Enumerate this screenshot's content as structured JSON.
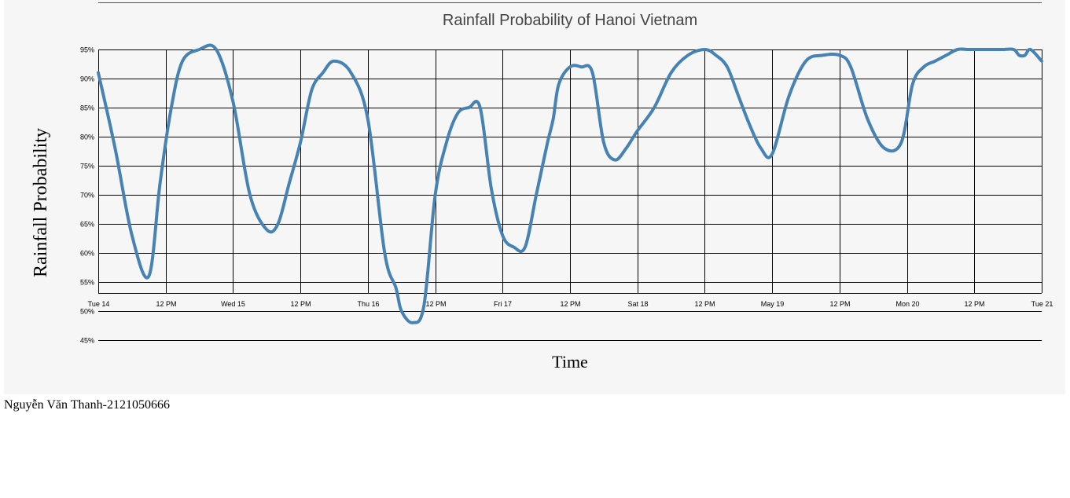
{
  "chart_data": {
    "type": "line",
    "title": "Rainfall Probability of Hanoi Vietnam",
    "xlabel": "Time",
    "ylabel": "Rainfall Probability",
    "x_tick_labels": [
      "Tue 14",
      "12 PM",
      "Wed 15",
      "12 PM",
      "Thu 16",
      "12 PM",
      "Fri 17",
      "12 PM",
      "Sat 18",
      "12 PM",
      "May 19",
      "12 PM",
      "Mon 20",
      "12 PM",
      "Tue 21"
    ],
    "y_tick_labels": [
      "95%",
      "90%",
      "85%",
      "80%",
      "75%",
      "70%",
      "65%",
      "60%",
      "55%",
      "50%",
      "45%"
    ],
    "y_ticks": [
      95,
      90,
      85,
      80,
      75,
      70,
      65,
      60,
      55,
      50,
      45
    ],
    "x_range_hours": [
      0,
      168
    ],
    "grid": true,
    "line_color": "#4682b4",
    "series": [
      {
        "hours": [
          0,
          3,
          6,
          9,
          11,
          13,
          15,
          18,
          21,
          24,
          27,
          30,
          32,
          34,
          36,
          38,
          40,
          42,
          45,
          48,
          51,
          53,
          54,
          56,
          58,
          60,
          62,
          64,
          66,
          68,
          70,
          72,
          74,
          76,
          78,
          80,
          81,
          82,
          84,
          86,
          88,
          90,
          92,
          94,
          96,
          99,
          102,
          105,
          108,
          110,
          112,
          114,
          116,
          118,
          120,
          123,
          126,
          129,
          132,
          134,
          137,
          140,
          143,
          145,
          147,
          149,
          151,
          153,
          155,
          157,
          159,
          161,
          163,
          164,
          165,
          166,
          168
        ],
        "values": [
          91,
          78,
          63,
          56,
          72,
          85,
          93,
          95,
          95,
          86,
          70,
          64,
          65,
          72,
          79,
          88,
          91,
          93,
          91,
          83,
          60,
          54,
          50,
          48,
          51,
          70,
          79,
          84,
          85,
          85,
          71,
          63,
          61,
          61,
          70,
          79,
          83,
          89,
          92,
          92,
          91,
          79,
          76,
          78,
          81,
          85,
          91,
          94,
          95,
          94,
          92,
          87,
          82,
          78,
          77,
          87,
          93,
          94,
          94,
          92,
          83,
          78,
          79,
          89,
          92,
          93,
          94,
          95,
          95,
          95,
          95,
          95,
          95,
          94,
          94,
          95,
          93
        ]
      }
    ]
  },
  "footer": {
    "author": "Nguyễn Văn Thanh-2121050666"
  }
}
